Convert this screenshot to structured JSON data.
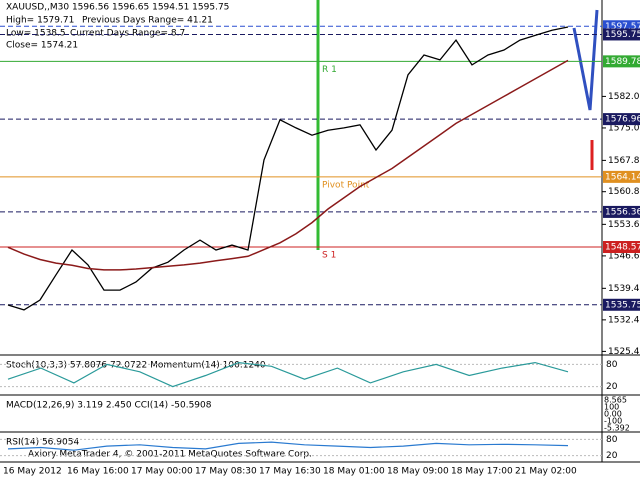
{
  "header": {
    "symbol_line": "XAUUSD,,M30  1596.56 1596.65 1594.51 1595.75",
    "high": "High= 1579.71",
    "prev_range": "Previous Days Range= 41.21",
    "low": "Low= 1538.5",
    "cur_range": "Current Days Range= 8.7",
    "close": "Close= 1574.21"
  },
  "chart_data": {
    "type": "line",
    "x_labels": [
      "16 May 2012",
      "16 May 16:00",
      "17 May 00:00",
      "17 May 08:30",
      "17 May 16:30",
      "18 May 01:00",
      "18 May 09:00",
      "18 May 17:00",
      "21 May 02:00"
    ],
    "ylim": [
      1524.6,
      1603.4
    ],
    "yticks": [
      {
        "value": 1582,
        "label": "1582.00"
      },
      {
        "value": 1575,
        "label": "1575.00"
      },
      {
        "value": 1567.8,
        "label": "1567.80"
      },
      1560.85,
      {
        "value": 1553.6,
        "label": "1553.60"
      },
      {
        "value": 1546.6,
        "label": "1546.60"
      },
      {
        "value": 1539.4,
        "label": "1539.40"
      },
      {
        "value": 1532.4,
        "label": "1532.40"
      },
      {
        "value": 1525.4,
        "label": "1525.40"
      }
    ],
    "series": [
      {
        "color": "#000000",
        "values": [
          1535.7,
          1534.6,
          1536.8,
          1542.4,
          1547.9,
          1544.6,
          1539,
          1539,
          1540.8,
          1543.9,
          1545.2,
          1547.9,
          1550.1,
          1547.9,
          1549,
          1547.9,
          1567.9,
          1576.8,
          1575,
          1573.4,
          1574.5,
          1575,
          1575.7,
          1570.1,
          1574.5,
          1586.8,
          1591.2,
          1590.1,
          1594.5,
          1589,
          1591.2,
          1592.3,
          1594.5,
          1595.6,
          1596.7,
          1597.4
        ]
      },
      {
        "color": "#8b1a1a",
        "values": [
          1548.5,
          1547,
          1545.8,
          1545,
          1544.5,
          1543.8,
          1543.5,
          1543.5,
          1543.7,
          1544,
          1544.3,
          1544.6,
          1545,
          1545.5,
          1546,
          1546.5,
          1548,
          1549.5,
          1551.5,
          1554,
          1557,
          1559.5,
          1562,
          1564,
          1566,
          1568.5,
          1571,
          1573.5,
          1576,
          1578,
          1580,
          1582,
          1584,
          1586,
          1588,
          1590
        ]
      }
    ],
    "levels": [
      {
        "value": 1597.57,
        "color": "#2a4fd0",
        "style": "dashed"
      },
      {
        "value": 1595.75,
        "color": "#1a1a60",
        "style": "dashed"
      },
      {
        "value": 1589.78,
        "color": "#33aa33",
        "style": "solid",
        "label": "R 1"
      },
      {
        "value": 1576.96,
        "color": "#1a1a60",
        "style": "dashed"
      },
      {
        "value": 1564.14,
        "color": "#e09020",
        "style": "solid",
        "label": "Pivot Point"
      },
      {
        "value": 1556.36,
        "color": "#1a1a60",
        "style": "dashed"
      },
      {
        "value": 1548.57,
        "color": "#cc2020",
        "style": "solid",
        "label": "S 1"
      },
      {
        "value": 1535.75,
        "color": "#1a1a60",
        "style": "dashed"
      }
    ]
  },
  "panes": [
    {
      "title": "Stoch(10,3,3) 57.8076 72.0722  Momentum(14) 100.1240",
      "ylim": [
        0,
        100
      ],
      "yticks": [
        80,
        20
      ],
      "series": [
        {
          "color": "#2a9a9a",
          "values": [
            40,
            70,
            30,
            80,
            60,
            20,
            50,
            85,
            75,
            40,
            70,
            30,
            60,
            80,
            50,
            70,
            85,
            60
          ]
        }
      ]
    },
    {
      "title": "MACD(12,26,9) 3.119 2.450  CCI(14) -50.5908",
      "scale_labels": [
        "8.565",
        "100",
        "0.00",
        "-100",
        "-5.392"
      ]
    },
    {
      "title": "RSI(14) 56.9054",
      "ylim": [
        0,
        100
      ],
      "yticks": [
        80,
        20
      ],
      "series": [
        {
          "color": "#2a7ad0",
          "values": [
            45,
            50,
            40,
            55,
            60,
            50,
            45,
            65,
            70,
            60,
            55,
            50,
            55,
            65,
            60,
            62,
            60,
            57
          ]
        }
      ]
    }
  ],
  "footer": "Axiory MetaTrader 4, © 2001-2011 MetaQuotes Software Corp."
}
